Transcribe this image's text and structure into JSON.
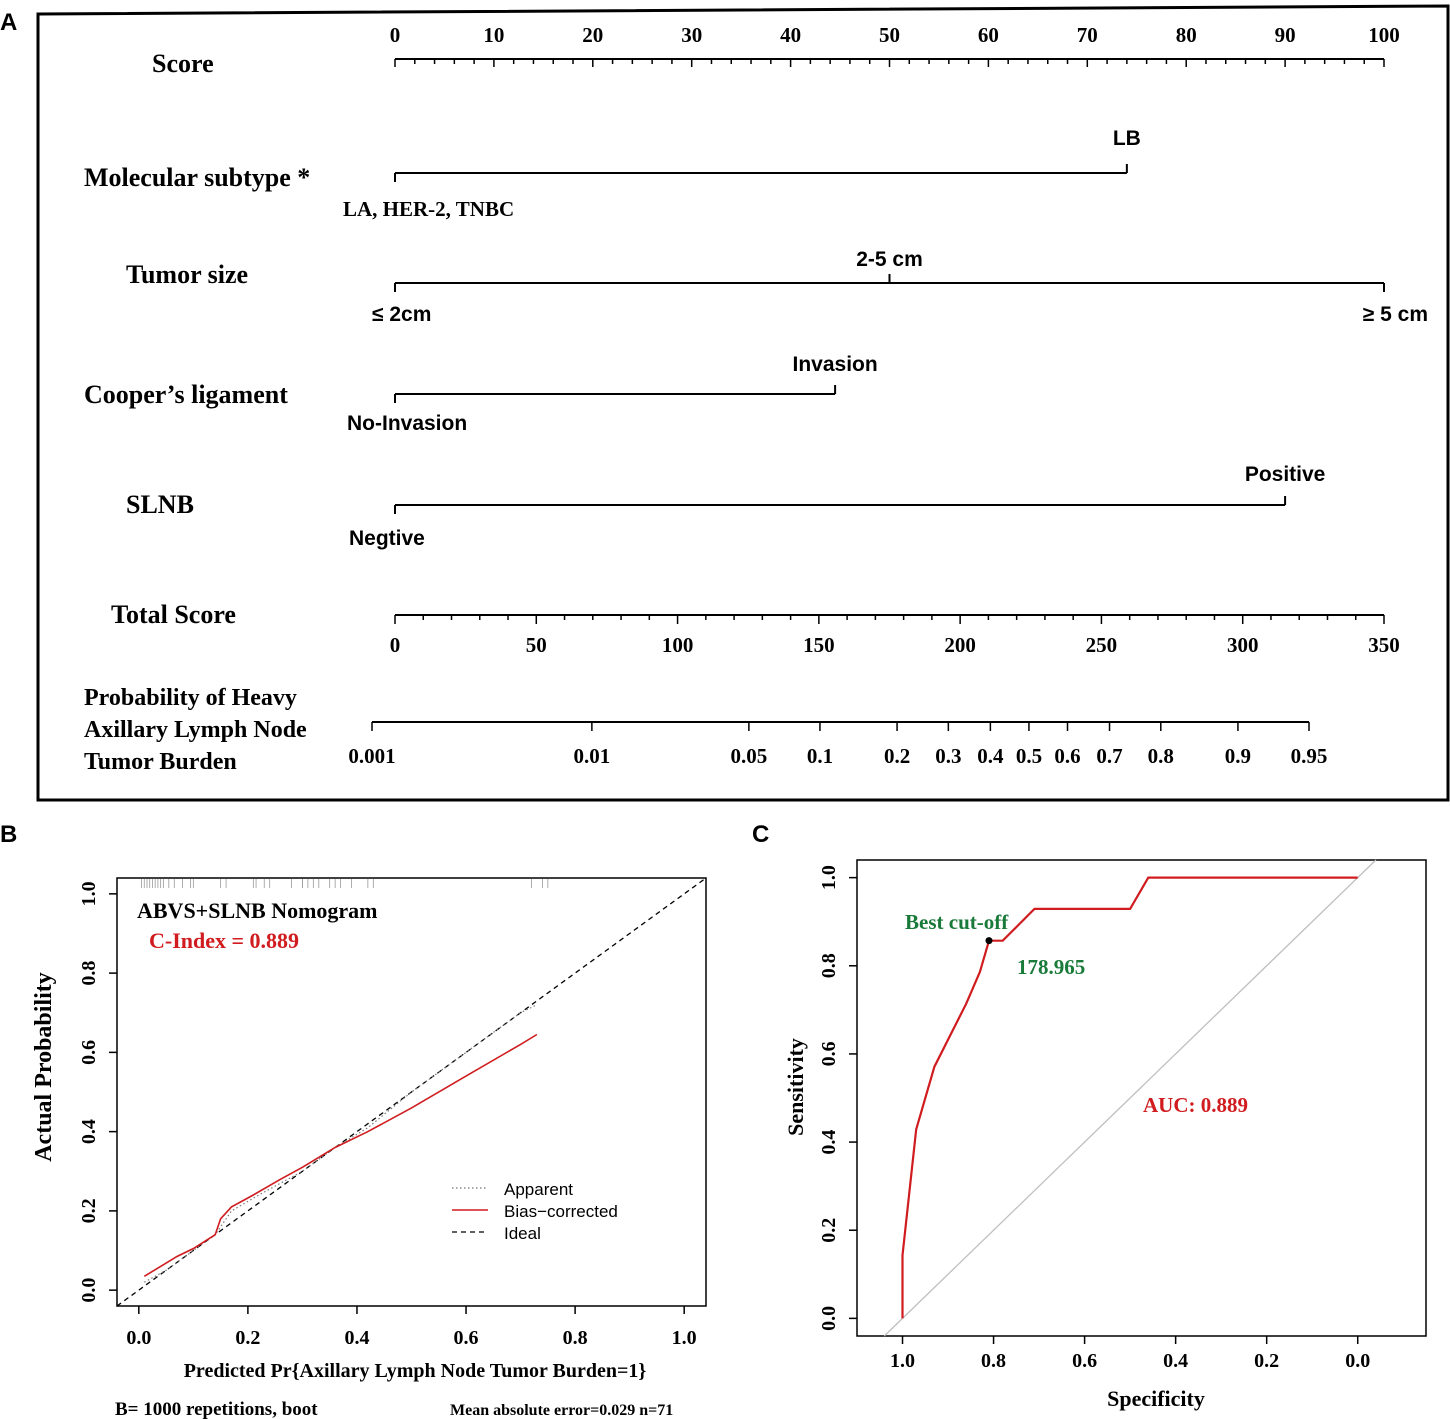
{
  "panels": {
    "a": "A",
    "b": "B",
    "c": "C"
  },
  "nomogram": {
    "score_label": "Score",
    "score_ticks": [
      "0",
      "10",
      "20",
      "30",
      "40",
      "50",
      "60",
      "70",
      "80",
      "90",
      "100"
    ],
    "molecular_label": "Molecular subtype *",
    "molecular_left": "LA, HER-2, TNBC",
    "molecular_right": "LB",
    "molecular_points": 74,
    "tumor_label": "Tumor size",
    "tumor_left": "≤ 2cm",
    "tumor_mid": "2-5 cm",
    "tumor_right": "≥ 5 cm",
    "tumor_mid_points": 50,
    "tumor_right_points": 100,
    "cooper_label": "Cooper’s ligament",
    "cooper_left": "No-Invasion",
    "cooper_right": "Invasion",
    "cooper_points": 44.5,
    "slnb_label": "SLNB",
    "slnb_left": "Negtive",
    "slnb_right": "Positive",
    "slnb_points": 90,
    "total_label": "Total Score",
    "total_ticks": [
      "0",
      "50",
      "100",
      "150",
      "200",
      "250",
      "300",
      "350"
    ],
    "prob_label_1": "Probability of  Heavy",
    "prob_label_2": "Axillary Lymph Node",
    "prob_label_3": "Tumor Burden",
    "prob_ticks": [
      "0.001",
      "0.01",
      "0.05",
      "0.1",
      "0.2",
      "0.3",
      "0.4",
      "0.5",
      "0.6",
      "0.7",
      "0.8",
      "0.9",
      "0.95"
    ]
  },
  "chart_data": [
    {
      "type": "line",
      "panel": "B",
      "title": "ABVS+SLNB Nomogram",
      "cindex": "C-Index = 0.889",
      "xlabel": "Predicted Pr{Axillary Lymph Node Tumor Burden=1}",
      "ylabel": "Actual Probability",
      "xlim": [
        -0.04,
        1.04
      ],
      "ylim": [
        -0.04,
        1.04
      ],
      "x_ticks": [
        "0.0",
        "0.2",
        "0.4",
        "0.6",
        "0.8",
        "1.0"
      ],
      "y_ticks": [
        "0.0",
        "0.2",
        "0.4",
        "0.6",
        "0.8",
        "1.0"
      ],
      "legend": [
        "Apparent",
        "Bias−corrected",
        "Ideal"
      ],
      "footer_left": "B= 1000 repetitions, boot",
      "footer_right": "Mean absolute error=0.029 n=71",
      "series": [
        {
          "name": "Apparent",
          "x": [
            0.01,
            0.05,
            0.1,
            0.14,
            0.17,
            0.22,
            0.3,
            0.36,
            0.42,
            0.5,
            0.6,
            0.7,
            0.73
          ],
          "y": [
            0.02,
            0.05,
            0.1,
            0.14,
            0.2,
            0.24,
            0.3,
            0.36,
            0.41,
            0.5,
            0.6,
            0.7,
            0.72
          ]
        },
        {
          "name": "Bias-corrected",
          "x": [
            0.01,
            0.04,
            0.07,
            0.1,
            0.14,
            0.15,
            0.17,
            0.21,
            0.26,
            0.3,
            0.36,
            0.42,
            0.5,
            0.6,
            0.7,
            0.73
          ],
          "y": [
            0.035,
            0.06,
            0.085,
            0.105,
            0.14,
            0.18,
            0.21,
            0.24,
            0.28,
            0.31,
            0.36,
            0.4,
            0.46,
            0.54,
            0.62,
            0.645
          ]
        },
        {
          "name": "Ideal",
          "x": [
            -0.04,
            1.04
          ],
          "y": [
            -0.04,
            1.04
          ]
        }
      ],
      "rug_x": [
        0.005,
        0.01,
        0.015,
        0.02,
        0.025,
        0.03,
        0.035,
        0.04,
        0.045,
        0.055,
        0.065,
        0.08,
        0.095,
        0.1,
        0.15,
        0.16,
        0.21,
        0.215,
        0.23,
        0.24,
        0.28,
        0.3,
        0.3,
        0.31,
        0.32,
        0.33,
        0.35,
        0.36,
        0.37,
        0.39,
        0.42,
        0.43,
        0.72,
        0.74,
        0.75
      ]
    },
    {
      "type": "line",
      "panel": "C",
      "xlabel": "Specificity",
      "ylabel": "Sensitivity",
      "xlim": [
        1.1,
        -0.15
      ],
      "ylim": [
        -0.04,
        1.04
      ],
      "x_ticks": [
        "1.0",
        "0.8",
        "0.6",
        "0.4",
        "0.2",
        "0.0"
      ],
      "y_ticks": [
        "0.0",
        "0.2",
        "0.4",
        "0.6",
        "0.8",
        "1.0"
      ],
      "auc": "AUC: 0.889",
      "best_cutoff_label": "Best cut-off",
      "best_cutoff_value": "178.965",
      "best_point": {
        "specificity": 0.81,
        "sensitivity": 0.857
      },
      "series": [
        {
          "name": "ROC",
          "specificity": [
            1.0,
            1.0,
            0.97,
            0.93,
            0.86,
            0.83,
            0.81,
            0.78,
            0.71,
            0.5,
            0.46,
            0.0
          ],
          "sensitivity": [
            0.0,
            0.143,
            0.429,
            0.571,
            0.714,
            0.786,
            0.857,
            0.857,
            0.929,
            0.929,
            1.0,
            1.0
          ]
        }
      ]
    }
  ],
  "colors": {
    "red": "#D01C1F",
    "green": "#1A7A3A",
    "black": "#000000",
    "gray": "#BFBFBF"
  }
}
